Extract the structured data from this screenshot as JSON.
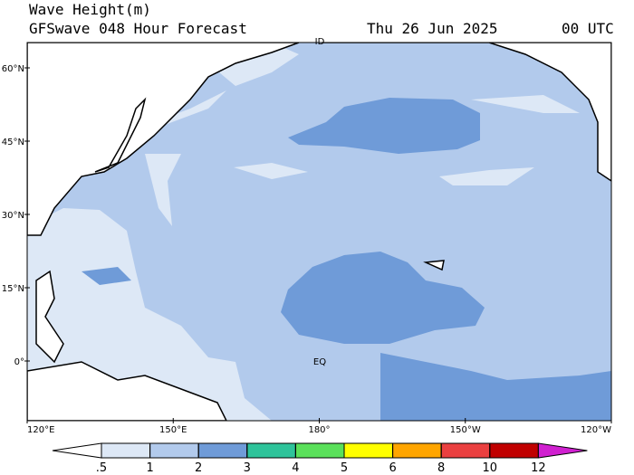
{
  "header": {
    "title": "Wave Height(m)",
    "subtitle": "GFSwave 048 Hour Forecast",
    "date": "Thu 26 Jun 2025",
    "time": "00 UTC"
  },
  "map": {
    "lat_labels": [
      "60°N",
      "45°N",
      "30°N",
      "15°N",
      "0°"
    ],
    "lon_labels": [
      "120°E",
      "150°E",
      "180°",
      "150°W",
      "120°W"
    ],
    "annotations": [
      "ID",
      "EQ"
    ]
  },
  "colorbar": {
    "levels": [
      {
        "value": 0.5,
        "label": ".5"
      },
      1,
      2,
      3,
      4,
      5,
      6,
      8,
      10,
      12
    ],
    "colors": [
      "#ffffff",
      "#dde8f6",
      "#b2caec",
      "#6f9bd8",
      "#2ec39a",
      "#5ae05a",
      "#ffff00",
      "#ffa500",
      "#ea4040",
      "#c00000",
      "#d020d0"
    ]
  }
}
